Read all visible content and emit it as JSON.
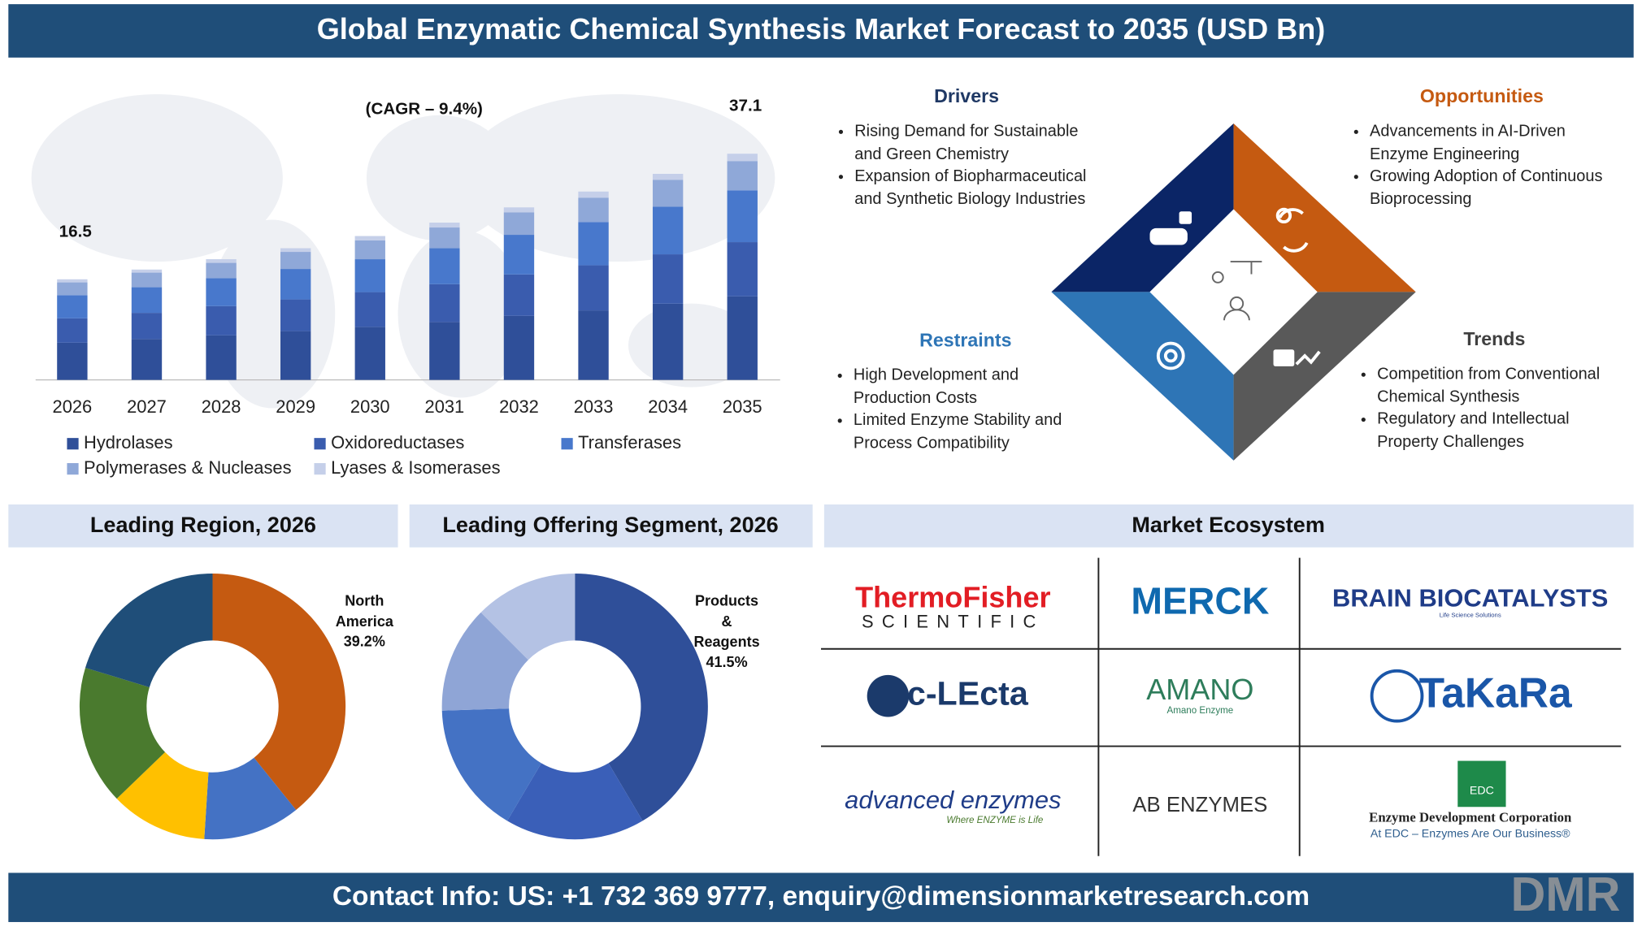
{
  "header": {
    "title": "Global Enzymatic Chemical Synthesis Market Forecast to 2035 (USD Bn)"
  },
  "chart_data": [
    {
      "type": "bar",
      "stacked": true,
      "categories": [
        "2026",
        "2027",
        "2028",
        "2029",
        "2030",
        "2031",
        "2032",
        "2033",
        "2034",
        "2035"
      ],
      "series": [
        {
          "name": "Hydrolases",
          "color": "#2f4f99",
          "values": [
            6.1,
            6.7,
            7.3,
            8.0,
            8.7,
            9.5,
            10.5,
            11.4,
            12.5,
            13.7
          ]
        },
        {
          "name": "Oxidoreductases",
          "color": "#3a5cae",
          "values": [
            4.0,
            4.3,
            4.8,
            5.2,
            5.7,
            6.2,
            6.8,
            7.4,
            8.1,
            8.9
          ]
        },
        {
          "name": "Transferases",
          "color": "#4878cc",
          "values": [
            3.8,
            4.2,
            4.6,
            5.0,
            5.4,
            5.9,
            6.5,
            7.1,
            7.8,
            8.5
          ]
        },
        {
          "name": "Polymerases & Nucleases",
          "color": "#8fa8d8",
          "values": [
            2.1,
            2.4,
            2.5,
            2.8,
            3.1,
            3.4,
            3.7,
            4.0,
            4.4,
            4.8
          ]
        },
        {
          "name": "Lyases & Isomerases",
          "color": "#c5cfe9",
          "values": [
            0.5,
            0.5,
            0.6,
            0.6,
            0.7,
            0.8,
            0.8,
            1.0,
            1.0,
            1.2
          ]
        }
      ],
      "total_labels": [
        16.5,
        null,
        null,
        null,
        null,
        null,
        null,
        null,
        null,
        37.1
      ],
      "annotations": [
        "(CAGR – 9.4%)"
      ],
      "ylim": [
        0,
        40
      ],
      "legend": "bottom"
    },
    {
      "type": "pie",
      "donut": true,
      "title": "Leading Region, 2026",
      "categories": [
        "North America",
        null,
        null,
        null,
        null
      ],
      "values": [
        39.2,
        11.8,
        11.8,
        16.9,
        20.3
      ],
      "value_labels": [
        "39.2%",
        null,
        null,
        null,
        null
      ],
      "colors": [
        "#c55a11",
        "#4472c4",
        "#ffc000",
        "#4a7a2e",
        "#1f4e79"
      ]
    },
    {
      "type": "pie",
      "donut": true,
      "title": "Leading Offering Segment, 2026",
      "categories": [
        "Products & Reagents",
        null,
        null,
        null,
        null
      ],
      "values": [
        41.5,
        17,
        16,
        13,
        12.5
      ],
      "value_labels": [
        "41.5%",
        null,
        null,
        null,
        null
      ],
      "colors": [
        "#2f4f99",
        "#3a5fb8",
        "#4472c4",
        "#8fa5d6",
        "#b4c2e4"
      ]
    }
  ],
  "quadrants": [
    {
      "title": "Drivers",
      "bullets": [
        "Rising Demand for Sustainable and Green Chemistry",
        "Expansion of Biopharmaceutical and Synthetic Biology Industries"
      ]
    },
    {
      "title": "Opportunities",
      "bullets": [
        "Advancements in AI-Driven Enzyme Engineering",
        "Growing Adoption of Continuous Bioprocessing"
      ]
    },
    {
      "title": "Restraints",
      "bullets": [
        "High Development and Production Costs",
        "Limited Enzyme Stability and Process Compatibility"
      ]
    },
    {
      "title": "Trends",
      "bullets": [
        "Competition from Conventional Chemical Synthesis",
        "Regulatory and Intellectual Property Challenges"
      ]
    }
  ],
  "ecosystem": {
    "title": "Market Ecosystem",
    "companies": [
      {
        "name": "ThermoFisher",
        "tagline": "SCIENTIFIC"
      },
      {
        "name": "MERCK"
      },
      {
        "name": "BRAIN BIOCATALYSTS",
        "tagline": "Life Science Solutions"
      },
      {
        "name": "c-LEcta"
      },
      {
        "name": "AMANO",
        "tagline": "Amano Enzyme"
      },
      {
        "name": "TaKaRa"
      },
      {
        "name": "advanced enzymes",
        "tagline": "Where ENZYME is Life"
      },
      {
        "name": "AB ENZYMES"
      },
      {
        "name": "Enzyme Development Corporation",
        "tagline": "At EDC – Enzymes Are Our Business®",
        "mark": "EDC"
      }
    ]
  },
  "footer": {
    "contact": "Contact Info: US: +1 732 369 9777, enquiry@dimensionmarketresearch.com"
  },
  "brand": "DMR"
}
